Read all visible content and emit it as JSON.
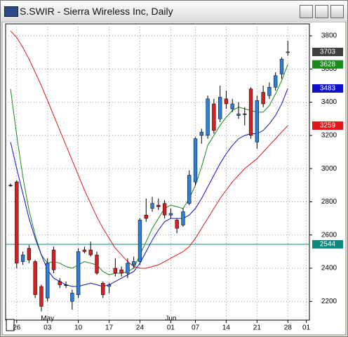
{
  "window": {
    "title": "S.SWIR - Sierra Wireless Inc, Daily"
  },
  "chart_data": {
    "type": "candlestick",
    "xlim": [
      -0.8,
      48.5
    ],
    "ylim": [
      2087,
      3872
    ],
    "yticks": [
      2200,
      2400,
      2600,
      2800,
      3000,
      3200,
      3400,
      3600,
      3800
    ],
    "xticks": [
      {
        "value": 1,
        "label": "26"
      },
      {
        "value": 6,
        "label": "03"
      },
      {
        "value": 11,
        "label": "10"
      },
      {
        "value": 16,
        "label": "17"
      },
      {
        "value": 21,
        "label": "24"
      },
      {
        "value": 26,
        "label": "01"
      },
      {
        "value": 30,
        "label": "07"
      },
      {
        "value": 35,
        "label": "14"
      },
      {
        "value": 40,
        "label": "21"
      },
      {
        "value": 45,
        "label": "28"
      },
      {
        "value": 48,
        "label": "01"
      }
    ],
    "month_ticks": [
      {
        "value": 6,
        "label": "May"
      },
      {
        "value": 26,
        "label": "Jun"
      }
    ],
    "grid": true,
    "up_color": "#2b7fd8",
    "down_color": "#d42020",
    "last_close_color": "#404040",
    "candles": {
      "open": [
        2900,
        2920,
        2440,
        2520,
        2440,
        2290,
        2220,
        2510,
        2320,
        2300,
        2200,
        2240,
        2510,
        2510,
        2480,
        2310,
        2290,
        2400,
        2390,
        2370,
        2420,
        2440,
        2720,
        2760,
        2780,
        2790,
        2720,
        2690,
        2660,
        2790,
        2920,
        3200,
        3200,
        3390,
        3300,
        3420,
        3360,
        3320,
        3330,
        3480,
        3160,
        3460,
        3440,
        3490,
        3570,
        3700
      ],
      "high": [
        2910,
        2930,
        2500,
        2540,
        2450,
        2300,
        2460,
        2530,
        2340,
        2320,
        2270,
        2520,
        2530,
        2560,
        2500,
        2320,
        2310,
        2460,
        2410,
        2460,
        2470,
        2700,
        2820,
        2830,
        2820,
        2810,
        2760,
        2700,
        2760,
        2990,
        3190,
        3240,
        3440,
        3420,
        3500,
        3470,
        3420,
        3400,
        3370,
        3490,
        3440,
        3500,
        3520,
        3580,
        3670,
        3770
      ],
      "low": [
        2890,
        2400,
        2420,
        2430,
        2220,
        2140,
        2200,
        2370,
        2280,
        2280,
        2150,
        2220,
        2490,
        2470,
        2360,
        2220,
        2250,
        2350,
        2350,
        2340,
        2400,
        2420,
        2680,
        2740,
        2750,
        2700,
        2700,
        2610,
        2650,
        2780,
        2900,
        3150,
        3180,
        3210,
        3280,
        3360,
        3340,
        3300,
        3260,
        3180,
        3120,
        3370,
        3420,
        3470,
        3540,
        3680
      ],
      "close": [
        2900,
        2430,
        2480,
        2450,
        2240,
        2170,
        2430,
        2390,
        2300,
        2300,
        2250,
        2500,
        2500,
        2480,
        2370,
        2240,
        2300,
        2370,
        2370,
        2430,
        2440,
        2690,
        2700,
        2790,
        2770,
        2720,
        2730,
        2640,
        2740,
        2960,
        3180,
        3220,
        3420,
        3230,
        3430,
        3390,
        3390,
        3330,
        3330,
        3200,
        3410,
        3390,
        3490,
        3560,
        3660,
        3703
      ]
    },
    "series": [
      {
        "color": "#1a8a1a",
        "values": [
          3480,
          3200,
          2950,
          2750,
          2600,
          2480,
          2430,
          2440,
          2430,
          2410,
          2400,
          2420,
          2440,
          2430,
          2420,
          2380,
          2360,
          2370,
          2370,
          2380,
          2400,
          2480,
          2560,
          2640,
          2700,
          2760,
          2780,
          2770,
          2760,
          2820,
          2900,
          3010,
          3140,
          3200,
          3260,
          3310,
          3350,
          3370,
          3360,
          3350,
          3340,
          3340,
          3380,
          3450,
          3530,
          3628
        ]
      },
      {
        "color": "#1010c8",
        "values": [
          3160,
          3000,
          2850,
          2700,
          2580,
          2480,
          2390,
          2340,
          2320,
          2300,
          2290,
          2290,
          2300,
          2310,
          2300,
          2290,
          2300,
          2320,
          2340,
          2360,
          2380,
          2430,
          2500,
          2570,
          2630,
          2680,
          2700,
          2700,
          2700,
          2720,
          2760,
          2820,
          2890,
          2960,
          3030,
          3090,
          3140,
          3180,
          3200,
          3210,
          3210,
          3230,
          3270,
          3320,
          3390,
          3483
        ]
      },
      {
        "color": "#e01818",
        "values": [
          3830,
          3790,
          3730,
          3660,
          3580,
          3500,
          3410,
          3320,
          3230,
          3140,
          3050,
          2960,
          2870,
          2790,
          2710,
          2640,
          2580,
          2520,
          2480,
          2440,
          2410,
          2400,
          2400,
          2410,
          2420,
          2440,
          2460,
          2480,
          2500,
          2530,
          2580,
          2640,
          2700,
          2760,
          2820,
          2870,
          2920,
          2960,
          3000,
          3030,
          3060,
          3100,
          3140,
          3180,
          3220,
          3259
        ]
      }
    ],
    "hline": {
      "value": 2544,
      "color": "#0c8a80"
    }
  }
}
